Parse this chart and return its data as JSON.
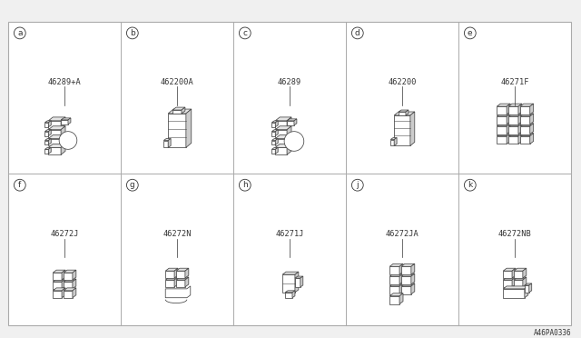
{
  "bg_color": "#f0f0f0",
  "grid_color": "#aaaaaa",
  "line_color": "#444444",
  "text_color": "#333333",
  "diagram_ref": "A46PA0336",
  "label_fontsize": 6.5,
  "part_fontsize": 6.2,
  "items": [
    {
      "label": "a",
      "part": "46289+A",
      "row": 0,
      "col": 0
    },
    {
      "label": "b",
      "part": "462200A",
      "row": 0,
      "col": 1
    },
    {
      "label": "c",
      "part": "46289",
      "row": 0,
      "col": 2
    },
    {
      "label": "d",
      "part": "462200",
      "row": 0,
      "col": 3
    },
    {
      "label": "e",
      "part": "46271F",
      "row": 0,
      "col": 4
    },
    {
      "label": "f",
      "part": "46272J",
      "row": 1,
      "col": 0
    },
    {
      "label": "g",
      "part": "46272N",
      "row": 1,
      "col": 1
    },
    {
      "label": "h",
      "part": "46271J",
      "row": 1,
      "col": 2
    },
    {
      "label": "j",
      "part": "46272JA",
      "row": 1,
      "col": 3
    },
    {
      "label": "k",
      "part": "46272NB",
      "row": 1,
      "col": 4
    }
  ]
}
